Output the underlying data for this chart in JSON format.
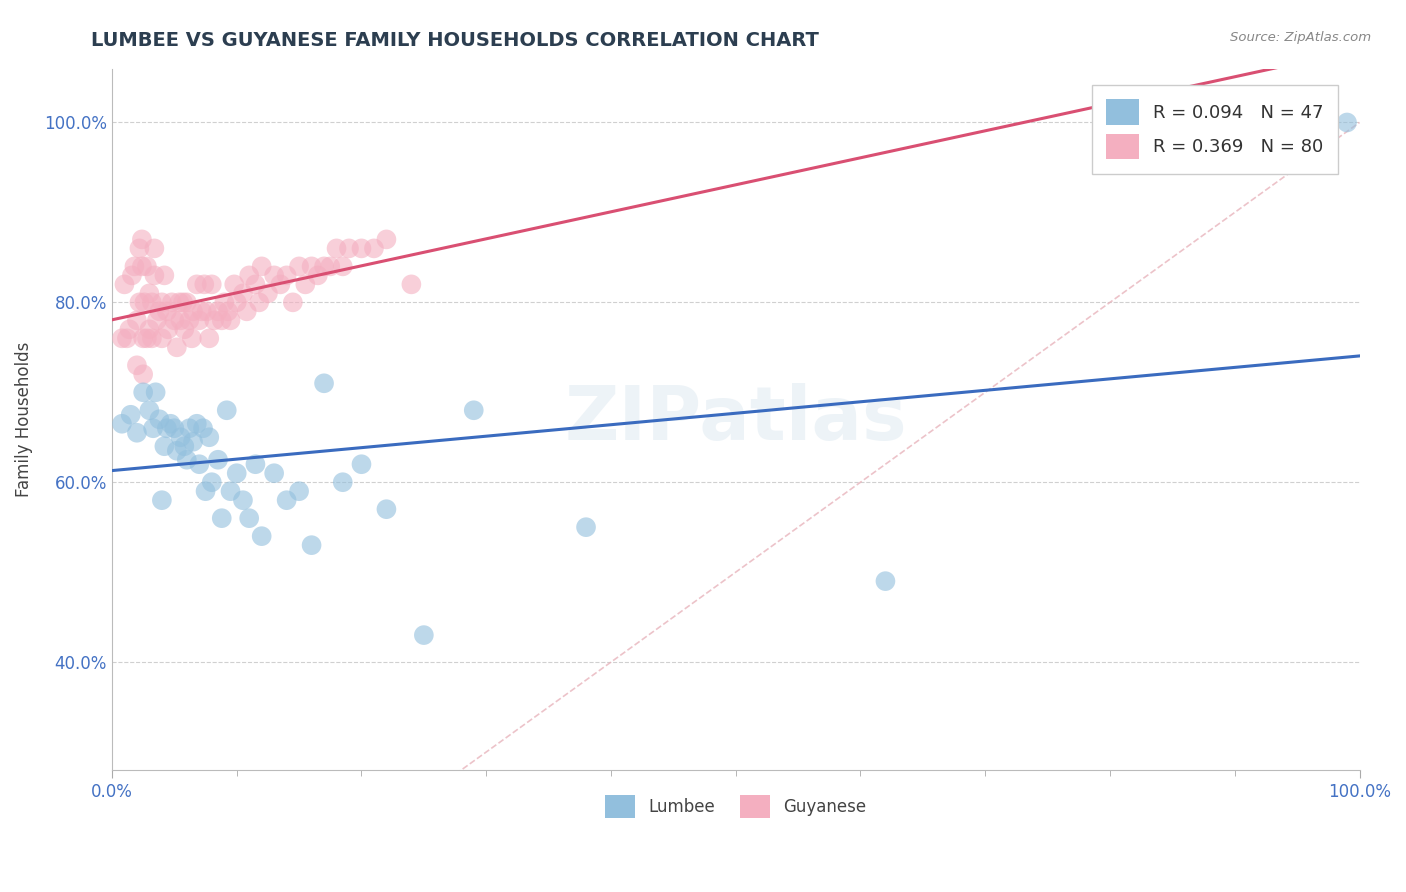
{
  "title": "LUMBEE VS GUYANESE FAMILY HOUSEHOLDS CORRELATION CHART",
  "source": "Source: ZipAtlas.com",
  "ylabel": "Family Households",
  "xlim": [
    0,
    1.0
  ],
  "ylim": [
    0.28,
    1.06
  ],
  "ytick_positions": [
    0.4,
    0.6,
    0.8,
    1.0
  ],
  "yticklabels": [
    "40.0%",
    "60.0%",
    "80.0%",
    "100.0%"
  ],
  "background_color": "#ffffff",
  "watermark": "ZIPatlas",
  "lumbee_R": 0.094,
  "lumbee_N": 47,
  "guyanese_R": 0.369,
  "guyanese_N": 80,
  "lumbee_color": "#92bfdd",
  "guyanese_color": "#f4afc0",
  "lumbee_line_color": "#3a6bbf",
  "guyanese_line_color": "#d94f72",
  "diagonal_color": "#e8b4bc",
  "grid_color": "#d0d0d0",
  "lumbee_x": [
    0.008,
    0.015,
    0.02,
    0.025,
    0.03,
    0.033,
    0.035,
    0.038,
    0.04,
    0.042,
    0.044,
    0.047,
    0.05,
    0.052,
    0.055,
    0.058,
    0.06,
    0.062,
    0.065,
    0.068,
    0.07,
    0.073,
    0.075,
    0.078,
    0.08,
    0.085,
    0.088,
    0.092,
    0.095,
    0.1,
    0.105,
    0.11,
    0.115,
    0.12,
    0.13,
    0.14,
    0.15,
    0.16,
    0.17,
    0.185,
    0.2,
    0.22,
    0.25,
    0.29,
    0.38,
    0.62,
    0.99
  ],
  "lumbee_y": [
    0.665,
    0.675,
    0.655,
    0.7,
    0.68,
    0.66,
    0.7,
    0.67,
    0.58,
    0.64,
    0.66,
    0.665,
    0.66,
    0.635,
    0.65,
    0.64,
    0.625,
    0.66,
    0.645,
    0.665,
    0.62,
    0.66,
    0.59,
    0.65,
    0.6,
    0.625,
    0.56,
    0.68,
    0.59,
    0.61,
    0.58,
    0.56,
    0.62,
    0.54,
    0.61,
    0.58,
    0.59,
    0.53,
    0.71,
    0.6,
    0.62,
    0.57,
    0.43,
    0.68,
    0.55,
    0.49,
    1.0
  ],
  "guyanese_x": [
    0.008,
    0.01,
    0.012,
    0.014,
    0.016,
    0.018,
    0.02,
    0.02,
    0.022,
    0.022,
    0.024,
    0.024,
    0.025,
    0.025,
    0.026,
    0.028,
    0.028,
    0.03,
    0.03,
    0.032,
    0.032,
    0.034,
    0.034,
    0.036,
    0.038,
    0.04,
    0.04,
    0.042,
    0.044,
    0.045,
    0.048,
    0.05,
    0.052,
    0.054,
    0.055,
    0.057,
    0.058,
    0.06,
    0.062,
    0.064,
    0.065,
    0.068,
    0.07,
    0.072,
    0.074,
    0.076,
    0.078,
    0.08,
    0.082,
    0.085,
    0.088,
    0.09,
    0.093,
    0.095,
    0.098,
    0.1,
    0.105,
    0.108,
    0.11,
    0.115,
    0.118,
    0.12,
    0.125,
    0.13,
    0.135,
    0.14,
    0.145,
    0.15,
    0.155,
    0.16,
    0.165,
    0.17,
    0.175,
    0.18,
    0.185,
    0.19,
    0.2,
    0.21,
    0.22,
    0.24
  ],
  "guyanese_y": [
    0.76,
    0.82,
    0.76,
    0.77,
    0.83,
    0.84,
    0.73,
    0.78,
    0.8,
    0.86,
    0.84,
    0.87,
    0.72,
    0.76,
    0.8,
    0.84,
    0.76,
    0.77,
    0.81,
    0.76,
    0.8,
    0.83,
    0.86,
    0.78,
    0.79,
    0.76,
    0.8,
    0.83,
    0.79,
    0.77,
    0.8,
    0.78,
    0.75,
    0.8,
    0.78,
    0.8,
    0.77,
    0.8,
    0.78,
    0.76,
    0.79,
    0.82,
    0.78,
    0.79,
    0.82,
    0.79,
    0.76,
    0.82,
    0.78,
    0.79,
    0.78,
    0.8,
    0.79,
    0.78,
    0.82,
    0.8,
    0.81,
    0.79,
    0.83,
    0.82,
    0.8,
    0.84,
    0.81,
    0.83,
    0.82,
    0.83,
    0.8,
    0.84,
    0.82,
    0.84,
    0.83,
    0.84,
    0.84,
    0.86,
    0.84,
    0.86,
    0.86,
    0.86,
    0.87,
    0.82
  ]
}
